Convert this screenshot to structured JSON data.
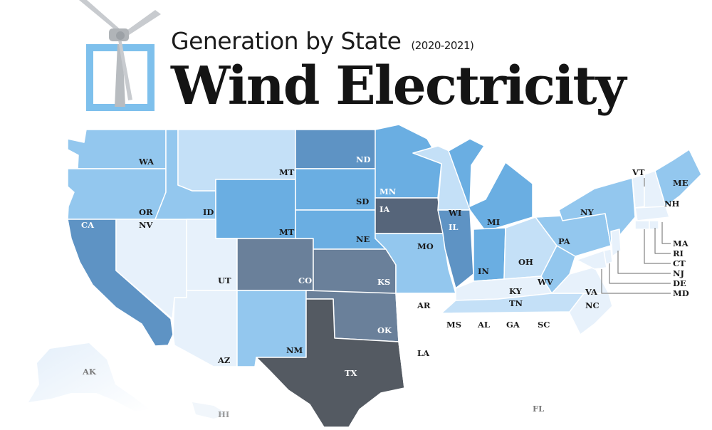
{
  "header": {
    "subtitle": "Generation by State",
    "years": "(2020-2021)",
    "title": "Wind Electricity"
  },
  "colors": {
    "lightest": "#e7f1fb",
    "light": "#c4e0f7",
    "medium": "#93c7ee",
    "strong": "#6aaee2",
    "deep": "#5e93c4",
    "slate": "#6a809a",
    "dark": "#56657a",
    "texas": "#545a62",
    "logo_frame": "#7ec0ec",
    "label_dark": "#1a1a1a",
    "label_light": "#ffffff",
    "label_muted": "#7a7a7a",
    "borders": "#ffffff"
  },
  "states": {
    "WA": "WA",
    "OR": "OR",
    "CA": "CA",
    "NV": "NV",
    "ID": "ID",
    "MT1": "MT",
    "MT2": "MT",
    "UT": "UT",
    "AZ": "AZ",
    "CO": "CO",
    "NM": "NM",
    "ND": "ND",
    "SD": "SD",
    "NE": "NE",
    "KS": "KS",
    "OK": "OK",
    "TX": "TX",
    "MN": "MN",
    "IA": "IA",
    "MO": "MO",
    "AR": "AR",
    "LA": "LA",
    "WI": "WI",
    "IL": "IL",
    "MI": "MI",
    "IN": "IN",
    "OH": "OH",
    "KY": "KY",
    "TN": "TN",
    "MS": "MS",
    "AL": "AL",
    "GA": "GA",
    "SC": "SC",
    "NC": "NC",
    "VA": "VA",
    "WV": "WV",
    "PA": "PA",
    "NY": "NY",
    "VT": "VT",
    "NH": "NH",
    "ME": "ME",
    "MA": "MA",
    "RI": "RI",
    "CT": "CT",
    "NJ": "NJ",
    "DE": "DE",
    "MD": "MD",
    "FL": "FL",
    "AK": "AK",
    "HI": "HI"
  }
}
